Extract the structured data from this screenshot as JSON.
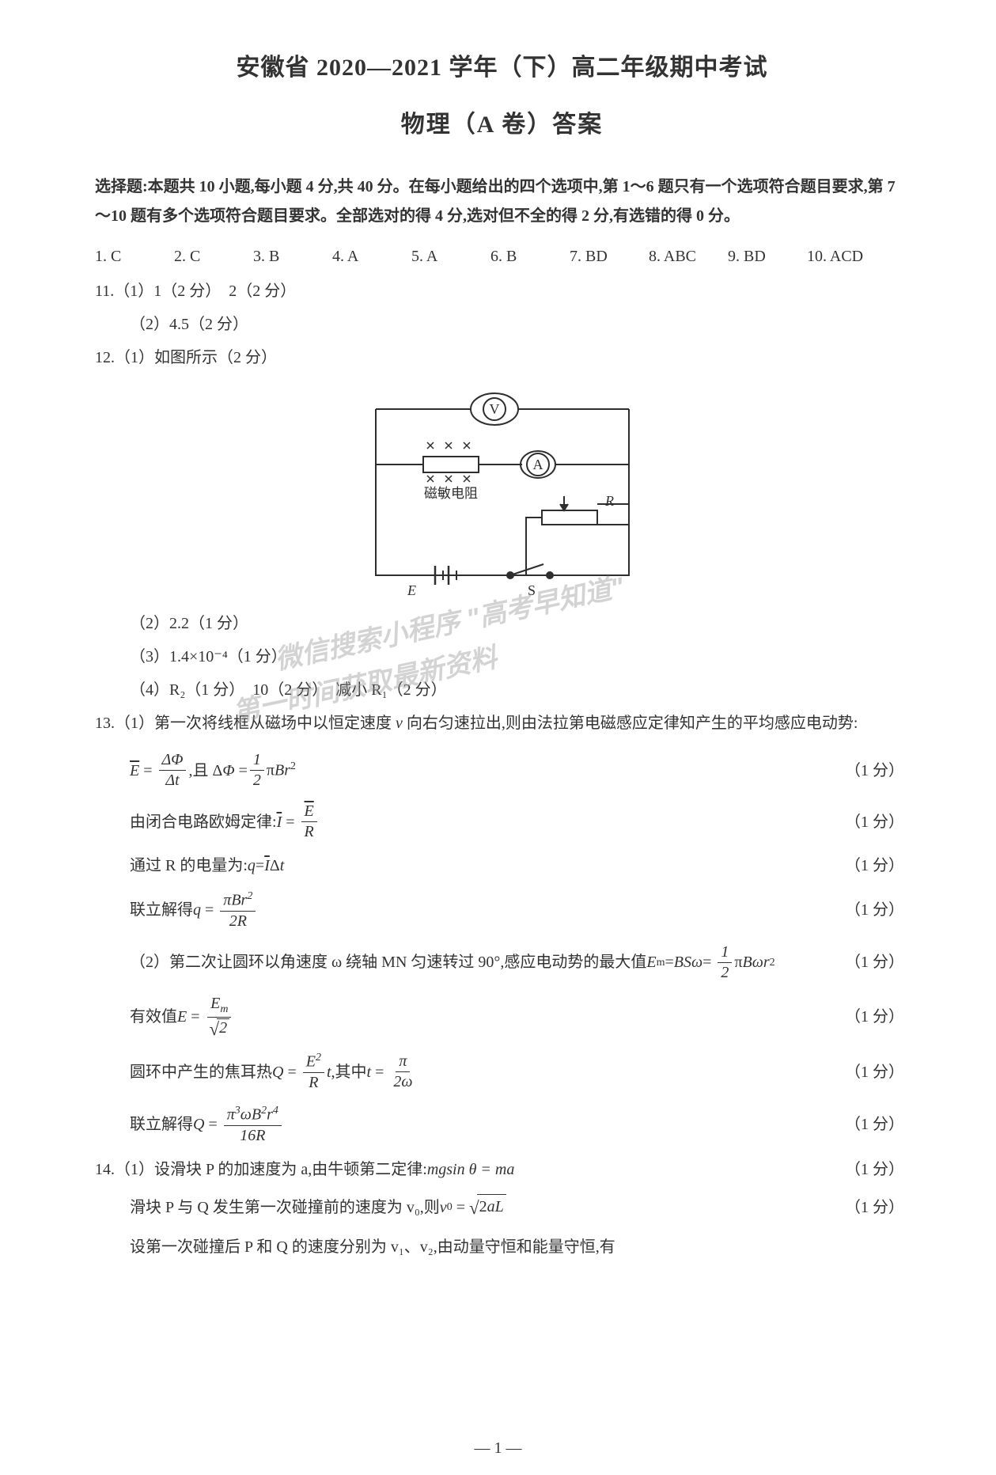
{
  "header": {
    "title_main": "安徽省 2020—2021 学年（下）高二年级期中考试",
    "title_sub": "物理（A 卷）答案"
  },
  "instructions": "选择题:本题共 10 小题,每小题 4 分,共 40 分。在每小题给出的四个选项中,第 1～6 题只有一个选项符合题目要求,第 7～10 题有多个选项符合题目要求。全部选对的得 4 分,选对但不全的得 2 分,有选错的得 0 分。",
  "mc_answers": [
    {
      "n": "1.",
      "a": "C"
    },
    {
      "n": "2.",
      "a": "C"
    },
    {
      "n": "3.",
      "a": "B"
    },
    {
      "n": "4.",
      "a": "A"
    },
    {
      "n": "5.",
      "a": "A"
    },
    {
      "n": "6.",
      "a": "B"
    },
    {
      "n": "7.",
      "a": "BD"
    },
    {
      "n": "8.",
      "a": "ABC"
    },
    {
      "n": "9.",
      "a": "BD"
    },
    {
      "n": "10.",
      "a": "ACD"
    }
  ],
  "q11": {
    "line1": "11.（1）1（2 分）　2（2 分）",
    "line2": "（2）4.5（2 分）"
  },
  "q12": {
    "line1": "12.（1）如图所示（2 分）",
    "line2": "（2）2.2（1 分）",
    "line3": "（3）1.4×10⁻⁴（1 分）",
    "line4_pre": "（4）R₂（1 分）　10（2 分）　减小 R₁（2 分）"
  },
  "circuit": {
    "labels": {
      "V": "V",
      "A": "A",
      "R": "R",
      "E": "E",
      "S": "S",
      "mag": "磁敏电阻"
    },
    "colors": {
      "stroke": "#2e2e2e",
      "text": "#2e2e2e"
    }
  },
  "q13": {
    "intro_pre": "13.（1）第一次将线框从磁场中以恒定速度 ",
    "intro_v": "v",
    "intro_post": " 向右匀速拉出,则由法拉第电磁感应定律知产生的平均感应电动势:",
    "l1_score": "（1 分）",
    "l2_pre": "由闭合电路欧姆定律:",
    "l2_score": "（1 分）",
    "l3_pre": "通过 R 的电量为:",
    "l3_score": "（1 分）",
    "l4_pre": "联立解得 ",
    "l4_score": "（1 分）",
    "p2_pre": "（2）第二次让圆环以角速度 ω 绕轴 MN 匀速转过 90°,感应电动势的最大值 ",
    "p2_score": "（1 分）",
    "l5_pre": "有效值 ",
    "l5_score": "（1 分）",
    "l6_pre": "圆环中产生的焦耳热 ",
    "l6_mid": ",其中 ",
    "l6_score": "（1 分）",
    "l7_pre": "联立解得 ",
    "l7_score": "（1 分）"
  },
  "q14": {
    "l1_pre": "14.（1）设滑块 P 的加速度为 a,由牛顿第二定律:",
    "l1_eq": "mgsin θ = ma",
    "l1_score": "（1 分）",
    "l2_pre": "滑块 P 与 Q 发生第一次碰撞前的速度为 v₀,则 ",
    "l2_score": "（1 分）",
    "l3": "设第一次碰撞后 P 和 Q 的速度分别为 v₁、v₂,由动量守恒和能量守恒,有"
  },
  "watermark": {
    "line1": "微信搜索小程序 \"高考早知道\"",
    "line2": "第一时间获取最新资料"
  },
  "page_number": "— 1 —",
  "style": {
    "body_font_size": 20,
    "title_font_size": 30,
    "text_color": "#333333",
    "bg_color": "#ffffff",
    "watermark_color": "rgba(150,150,150,0.42)"
  }
}
